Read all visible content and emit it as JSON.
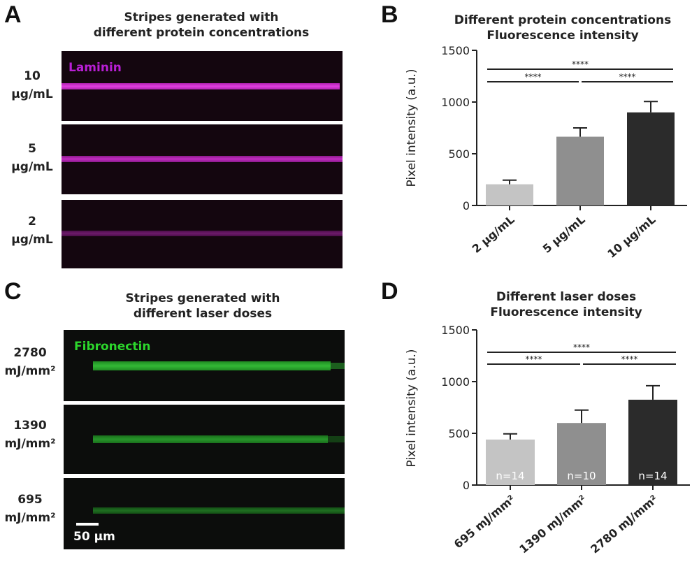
{
  "panelA": {
    "letter": "A",
    "title": [
      "Stripes generated with",
      "different protein concentrations"
    ],
    "stain_label": "Laminin",
    "rows": [
      {
        "label": [
          "10",
          "µg/mL"
        ]
      },
      {
        "label": [
          "5",
          "µg/mL"
        ]
      },
      {
        "label": [
          "2",
          "µg/mL"
        ]
      }
    ]
  },
  "panelC": {
    "letter": "C",
    "title": [
      "Stripes generated with",
      "different laser doses"
    ],
    "stain_label": "Fibronectin",
    "scale_label": "50 µm",
    "rows": [
      {
        "label": [
          "2780",
          "mJ/mm²"
        ]
      },
      {
        "label": [
          "1390",
          "mJ/mm²"
        ]
      },
      {
        "label": [
          "695",
          "mJ/mm²"
        ]
      }
    ]
  },
  "panelB": {
    "letter": "B"
  },
  "panelD": {
    "letter": "D"
  },
  "colors": {
    "magenta": "#c82dc6",
    "green": "#2ca82f",
    "bar_light": "#c4c4c4",
    "bar_mid": "#8f8f8f",
    "bar_dark": "#2b2b2b"
  },
  "chart_data": [
    {
      "type": "bar",
      "title": [
        "Different protein concentrations",
        "Fluorescence intensity"
      ],
      "categories": [
        "2 µg/mL",
        "5 µg/mL",
        "10 µg/mL"
      ],
      "values": [
        205,
        665,
        900
      ],
      "errors": [
        40,
        85,
        105
      ],
      "ylabel": "Pixel intensity (a.u.)",
      "xlabel": "",
      "ylim": [
        0,
        1500
      ],
      "yticks": [
        0,
        500,
        1000,
        1500
      ],
      "bar_colors": [
        "#c4c4c4",
        "#8f8f8f",
        "#2b2b2b"
      ],
      "bar_labels": [
        "",
        "",
        ""
      ],
      "significance": [
        {
          "from": 0,
          "to": 2,
          "label": "****",
          "level": 2
        },
        {
          "from": 0,
          "to": 1,
          "label": "****",
          "level": 1
        },
        {
          "from": 1,
          "to": 2,
          "label": "****",
          "level": 1
        }
      ]
    },
    {
      "type": "bar",
      "title": [
        "Different laser doses",
        "Fluorescence intensity"
      ],
      "categories": [
        "695 mJ/mm²",
        "1390 mJ/mm²",
        "2780 mJ/mm²"
      ],
      "values": [
        440,
        600,
        825
      ],
      "errors": [
        55,
        125,
        135
      ],
      "ylabel": "Pixel intensity (a.u.)",
      "xlabel": "",
      "ylim": [
        0,
        1500
      ],
      "yticks": [
        0,
        500,
        1000,
        1500
      ],
      "bar_colors": [
        "#c4c4c4",
        "#8f8f8f",
        "#2b2b2b"
      ],
      "bar_labels": [
        "n=14",
        "n=10",
        "n=14"
      ],
      "significance": [
        {
          "from": 0,
          "to": 2,
          "label": "****",
          "level": 2
        },
        {
          "from": 0,
          "to": 1,
          "label": "****",
          "level": 1
        },
        {
          "from": 1,
          "to": 2,
          "label": "****",
          "level": 1
        }
      ]
    }
  ]
}
